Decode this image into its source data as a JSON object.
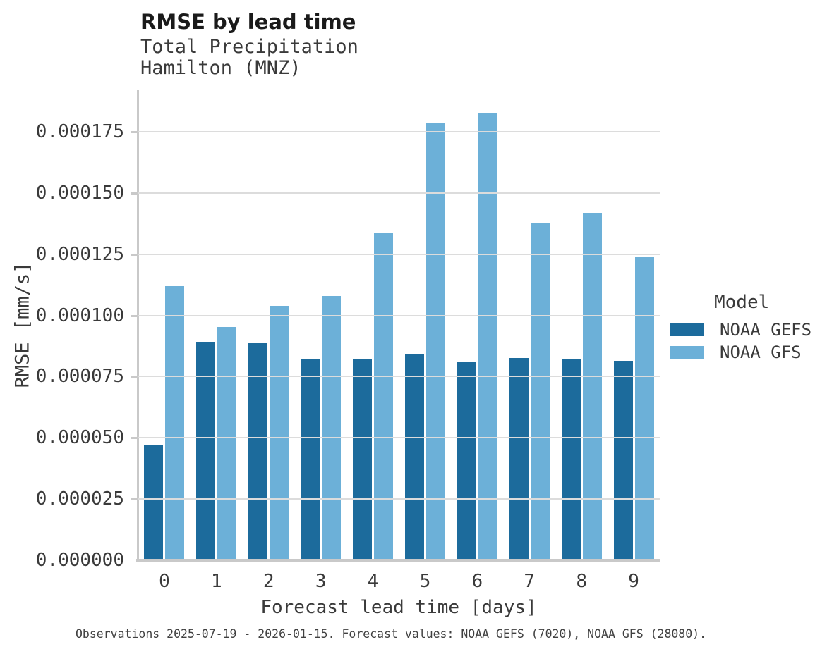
{
  "header": {
    "title": "RMSE by lead time",
    "subtitle": "Total Precipitation",
    "location": "Hamilton (MNZ)"
  },
  "chart_data": {
    "type": "bar",
    "title": "RMSE by lead time",
    "subtitle": "Total Precipitation",
    "location": "Hamilton (MNZ)",
    "xlabel": "Forecast lead time [days]",
    "ylabel": "RMSE [mm/s]",
    "categories": [
      "0",
      "1",
      "2",
      "3",
      "4",
      "5",
      "6",
      "7",
      "8",
      "9"
    ],
    "series": [
      {
        "name": "NOAA GEFS",
        "color": "#1c6b9c",
        "values": [
          4.69e-05,
          8.92e-05,
          8.89e-05,
          8.2e-05,
          8.2e-05,
          8.45e-05,
          8.1e-05,
          8.25e-05,
          8.21e-05,
          8.16e-05
        ]
      },
      {
        "name": "NOAA GFS",
        "color": "#6cb0d8",
        "values": [
          0.000112,
          9.53e-05,
          0.000104,
          0.000108,
          0.0001335,
          0.0001785,
          0.0001825,
          0.000138,
          0.000142,
          0.000124
        ]
      }
    ],
    "ylim": [
      0,
      0.000192
    ],
    "ytick_step": 2.5e-05,
    "ytick_labels": [
      "0.000000",
      "0.000025",
      "0.000050",
      "0.000075",
      "0.000100",
      "0.000125",
      "0.000150",
      "0.000175"
    ],
    "grid": "horizontal",
    "legend_position": "right",
    "legend_title": "Model",
    "colors": {
      "grid": "#dcdcdc",
      "axis": "#c9c9c9",
      "title_text": "#1a1a1a",
      "label_text": "#3a3a3a"
    }
  },
  "legend": {
    "title": "Model",
    "items": [
      {
        "label": "NOAA GEFS",
        "color": "#1c6b9c"
      },
      {
        "label": "NOAA GFS",
        "color": "#6cb0d8"
      }
    ]
  },
  "caption": "Observations 2025-07-19 - 2026-01-15. Forecast values: NOAA GEFS (7020), NOAA GFS (28080)."
}
